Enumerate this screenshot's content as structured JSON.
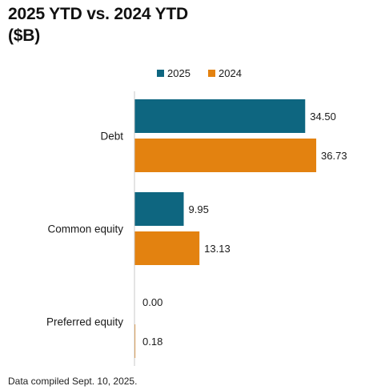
{
  "title_line1": "2025 YTD vs. 2024 YTD",
  "title_line2": "($B)",
  "footnote": "Data compiled Sept. 10, 2025.",
  "colors": {
    "series_2025": "#0e6680",
    "series_2024": "#e38210"
  },
  "chart_data": {
    "type": "bar",
    "orientation": "horizontal",
    "categories": [
      "Debt",
      "Common equity",
      "Preferred equity"
    ],
    "series": [
      {
        "name": "2025",
        "values": [
          34.5,
          9.95,
          0.0
        ],
        "labels": [
          "34.50",
          "9.95",
          "0.00"
        ]
      },
      {
        "name": "2024",
        "values": [
          36.73,
          13.13,
          0.18
        ],
        "labels": [
          "36.73",
          "13.13",
          "0.18"
        ]
      }
    ],
    "xlim": [
      0,
      38.5
    ],
    "grid": false,
    "legend_position": "top"
  }
}
